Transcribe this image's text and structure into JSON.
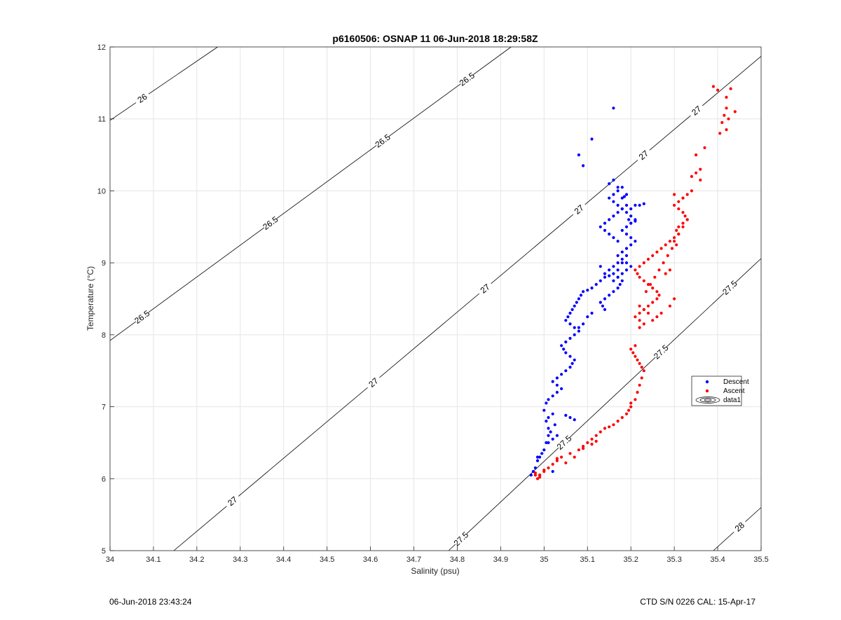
{
  "chart_data": {
    "type": "scatter",
    "title": "p6160506: OSNAP 11 06-Jun-2018 18:29:58Z",
    "xlabel": "Salinity (psu)",
    "ylabel": "Temperature (°C)",
    "xlim": [
      34,
      35.5
    ],
    "ylim": [
      5,
      12
    ],
    "xticks": [
      "34",
      "34.1",
      "34.2",
      "34.3",
      "34.4",
      "34.5",
      "34.6",
      "34.7",
      "34.8",
      "34.9",
      "35",
      "35.1",
      "35.2",
      "35.3",
      "35.4",
      "35.5"
    ],
    "yticks": [
      "5",
      "6",
      "7",
      "8",
      "9",
      "10",
      "11",
      "12"
    ],
    "grid": true,
    "legend_position": "right",
    "legend": [
      "Descent",
      "Ascent",
      "data1"
    ],
    "colors": {
      "descent": "#0000ff",
      "ascent": "#ff0000",
      "contour": "#000000",
      "grid": "#e5e5e5"
    },
    "contour_labels": [
      "26",
      "26.5",
      "26.5",
      "26.5",
      "26.5",
      "27",
      "27",
      "27",
      "27",
      "27",
      "27",
      "27.5",
      "27.5",
      "27.5",
      "27.5",
      "28"
    ],
    "contours": [
      {
        "level": "26",
        "x": [
          34.0,
          34.248
        ],
        "y": [
          10.98,
          12.0
        ]
      },
      {
        "level": "26.5",
        "x": [
          34.0,
          34.924
        ],
        "y": [
          7.92,
          12.0
        ]
      },
      {
        "level": "27",
        "x": [
          34.147,
          35.5
        ],
        "y": [
          5.0,
          11.87
        ]
      },
      {
        "level": "27.5",
        "x": [
          34.78,
          35.5
        ],
        "y": [
          5.0,
          9.06
        ]
      },
      {
        "level": "28",
        "x": [
          35.39,
          35.5
        ],
        "y": [
          5.0,
          5.6
        ]
      }
    ],
    "series": [
      {
        "name": "Descent",
        "x": [
          34.97,
          34.975,
          34.98,
          34.985,
          34.99,
          34.995,
          35.0,
          35.005,
          35.01,
          35.015,
          35.01,
          35.005,
          35.01,
          35.02,
          35.025,
          35.03,
          35.02,
          35.01,
          35.0,
          35.005,
          35.01,
          35.02,
          35.03,
          35.04,
          35.03,
          35.02,
          35.03,
          35.04,
          35.05,
          35.06,
          35.065,
          35.07,
          35.06,
          35.05,
          35.045,
          35.04,
          35.05,
          35.06,
          35.07,
          35.08,
          35.07,
          35.06,
          35.05,
          35.055,
          35.06,
          35.065,
          35.07,
          35.075,
          35.08,
          35.085,
          35.09,
          35.1,
          35.11,
          35.12,
          35.13,
          35.14,
          35.15,
          35.16,
          35.17,
          35.18,
          35.175,
          35.17,
          35.16,
          35.15,
          35.14,
          35.13,
          35.135,
          35.14,
          35.15,
          35.16,
          35.17,
          35.18,
          35.19,
          35.2,
          35.19,
          35.18,
          35.17,
          35.16,
          35.17,
          35.18,
          35.19,
          35.2,
          35.21,
          35.2,
          35.19,
          35.18,
          35.19,
          35.2,
          35.21,
          35.2,
          35.19,
          35.18,
          35.17,
          35.16,
          35.15,
          35.16,
          35.17,
          35.18,
          35.19,
          35.18,
          35.17,
          35.16,
          35.15,
          35.14,
          35.13,
          35.14,
          35.15,
          35.16,
          35.17,
          35.2,
          35.21,
          35.22,
          35.23,
          35.19,
          35.18,
          35.17,
          35.14,
          35.13,
          35.1,
          35.11,
          35.08,
          35.09,
          35.15,
          35.16,
          35.17,
          35.18,
          35.185,
          35.19,
          35.195,
          35.2,
          35.21
        ],
        "y": [
          6.05,
          6.1,
          6.15,
          6.25,
          6.3,
          6.35,
          6.4,
          6.5,
          6.6,
          6.65,
          6.7,
          6.8,
          6.85,
          6.9,
          6.75,
          6.6,
          6.55,
          6.5,
          6.95,
          7.05,
          7.1,
          7.15,
          7.2,
          7.25,
          7.3,
          7.35,
          7.4,
          7.45,
          7.5,
          7.55,
          7.6,
          7.65,
          7.7,
          7.75,
          7.8,
          7.85,
          7.9,
          7.95,
          8.0,
          8.05,
          8.1,
          8.15,
          8.2,
          8.25,
          8.3,
          8.35,
          8.4,
          8.45,
          8.5,
          8.55,
          8.6,
          8.62,
          8.65,
          8.7,
          8.75,
          8.8,
          8.82,
          8.85,
          8.8,
          8.75,
          8.7,
          8.65,
          8.6,
          8.55,
          8.5,
          8.45,
          8.4,
          8.35,
          8.9,
          8.95,
          9.0,
          9.05,
          9.0,
          8.95,
          8.9,
          8.85,
          8.8,
          8.75,
          9.1,
          9.15,
          9.2,
          9.25,
          9.3,
          9.35,
          9.4,
          9.45,
          9.5,
          9.55,
          9.6,
          9.65,
          9.7,
          9.75,
          9.8,
          9.85,
          9.9,
          9.95,
          10.0,
          10.05,
          9.8,
          9.75,
          9.7,
          9.65,
          9.6,
          9.55,
          9.5,
          9.45,
          9.4,
          9.35,
          9.3,
          9.75,
          9.8,
          9.8,
          9.82,
          9.1,
          9.0,
          8.9,
          8.85,
          8.95,
          8.25,
          8.3,
          8.1,
          8.15,
          10.1,
          10.15,
          10.05,
          9.9,
          9.92,
          9.95,
          9.6,
          9.55,
          9.58
        ],
        "extra_x": [
          35.16,
          35.11,
          35.08,
          35.09,
          34.985,
          34.99,
          35.02,
          35.06,
          35.07,
          35.05
        ],
        "extra_y": [
          11.15,
          10.72,
          10.5,
          10.35,
          6.3,
          6.05,
          6.1,
          6.85,
          6.82,
          6.88
        ]
      },
      {
        "name": "Ascent",
        "x": [
          34.98,
          34.99,
          35.0,
          35.01,
          35.02,
          35.03,
          35.04,
          35.06,
          35.08,
          35.09,
          35.1,
          35.11,
          35.12,
          35.13,
          35.14,
          35.15,
          35.16,
          35.17,
          35.18,
          35.19,
          35.195,
          35.2,
          35.2,
          35.21,
          35.215,
          35.22,
          35.225,
          35.23,
          35.225,
          35.22,
          35.215,
          35.21,
          35.205,
          35.2,
          35.21,
          35.22,
          35.23,
          35.22,
          35.21,
          35.22,
          35.23,
          35.24,
          35.25,
          35.26,
          35.265,
          35.26,
          35.25,
          35.24,
          35.23,
          35.22,
          35.215,
          35.21,
          35.22,
          35.23,
          35.24,
          35.25,
          35.26,
          35.27,
          35.28,
          35.29,
          35.3,
          35.31,
          35.305,
          35.31,
          35.32,
          35.33,
          35.325,
          35.32,
          35.31,
          35.3,
          35.31,
          35.32,
          35.33,
          35.34,
          35.33,
          35.32,
          35.31,
          35.3,
          35.29,
          35.28,
          35.3,
          35.32,
          35.34,
          35.36,
          35.37,
          35.39,
          35.4,
          35.42,
          35.43,
          35.42,
          35.415,
          35.41,
          35.405,
          35.42,
          35.425,
          35.44,
          35.35,
          35.36,
          35.35,
          35.3,
          35.29,
          35.27,
          35.26,
          35.25,
          35.24,
          35.23,
          35.22,
          35.235,
          35.245,
          35.255,
          35.265,
          35.275,
          35.285,
          35.295,
          35.305
        ],
        "y": [
          6.05,
          6.02,
          6.1,
          6.15,
          6.2,
          6.25,
          6.3,
          6.35,
          6.4,
          6.45,
          6.5,
          6.55,
          6.6,
          6.65,
          6.7,
          6.72,
          6.75,
          6.8,
          6.85,
          6.9,
          6.95,
          7.0,
          7.05,
          7.1,
          7.2,
          7.3,
          7.4,
          7.5,
          7.55,
          7.6,
          7.65,
          7.7,
          7.75,
          7.8,
          7.85,
          8.1,
          8.15,
          8.2,
          8.25,
          8.3,
          8.35,
          8.4,
          8.45,
          8.5,
          8.55,
          8.6,
          8.65,
          8.7,
          8.75,
          8.8,
          8.85,
          8.9,
          8.95,
          9.0,
          9.05,
          9.1,
          9.15,
          9.2,
          9.25,
          9.3,
          9.35,
          9.4,
          9.45,
          9.5,
          9.55,
          9.6,
          9.65,
          9.7,
          9.75,
          9.8,
          9.85,
          9.9,
          9.95,
          10.0,
          9.6,
          9.5,
          9.4,
          9.3,
          8.9,
          8.85,
          9.95,
          9.9,
          10.2,
          10.3,
          10.6,
          11.45,
          11.4,
          11.3,
          11.42,
          11.15,
          11.05,
          10.95,
          10.8,
          10.85,
          11.0,
          11.1,
          10.25,
          10.15,
          10.5,
          8.5,
          8.4,
          8.3,
          8.25,
          8.2,
          8.3,
          8.35,
          8.4,
          8.6,
          8.7,
          8.8,
          8.9,
          9.0,
          9.1,
          9.2,
          9.25
        ],
        "extra_x": [
          34.98,
          34.985,
          34.99,
          35.0,
          35.03,
          35.05,
          35.07,
          35.09,
          35.11,
          35.12
        ],
        "extra_y": [
          6.08,
          6.0,
          6.05,
          6.12,
          6.28,
          6.22,
          6.3,
          6.42,
          6.48,
          6.52
        ]
      }
    ]
  },
  "footer": {
    "left": "06-Jun-2018 23:43:24",
    "right": "CTD S/N 0226  CAL: 15-Apr-17"
  }
}
